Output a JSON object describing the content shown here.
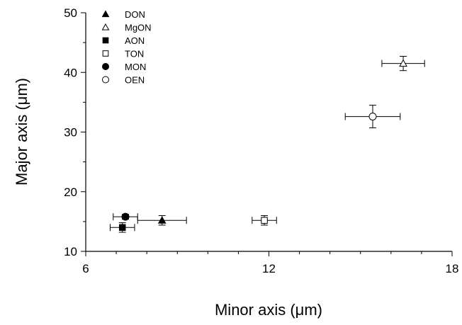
{
  "chart_data": {
    "type": "scatter",
    "xlabel": "Minor axis (μm)",
    "ylabel": "Major axis (μm)",
    "xlim": [
      6,
      18
    ],
    "ylim": [
      10,
      50
    ],
    "xticks": [
      "6",
      "12",
      "18"
    ],
    "yticks": [
      "10",
      "20",
      "30",
      "40",
      "50"
    ],
    "grid": false,
    "legend_position": "top-left",
    "error_bars": true,
    "series": [
      {
        "name": "DON",
        "marker": "triangle-filled",
        "points": [
          {
            "x": 8.5,
            "y": 15.2,
            "xerr": 0.8,
            "yerr": 0.8
          }
        ]
      },
      {
        "name": "MgON",
        "marker": "triangle-open",
        "points": [
          {
            "x": 16.4,
            "y": 41.5,
            "xerr": 0.7,
            "yerr": 1.2
          }
        ]
      },
      {
        "name": "AON",
        "marker": "square-filled",
        "points": [
          {
            "x": 7.2,
            "y": 14.0,
            "xerr": 0.4,
            "yerr": 0.8
          }
        ]
      },
      {
        "name": "TON",
        "marker": "square-open",
        "points": [
          {
            "x": 11.85,
            "y": 15.2,
            "xerr": 0.4,
            "yerr": 0.8
          }
        ]
      },
      {
        "name": "MON",
        "marker": "circle-filled",
        "points": [
          {
            "x": 7.3,
            "y": 15.8,
            "xerr": 0.4,
            "yerr": 0.4
          }
        ]
      },
      {
        "name": "OEN",
        "marker": "circle-open",
        "points": [
          {
            "x": 15.4,
            "y": 32.6,
            "xerr": 0.9,
            "yerr": 1.9
          }
        ]
      }
    ]
  }
}
